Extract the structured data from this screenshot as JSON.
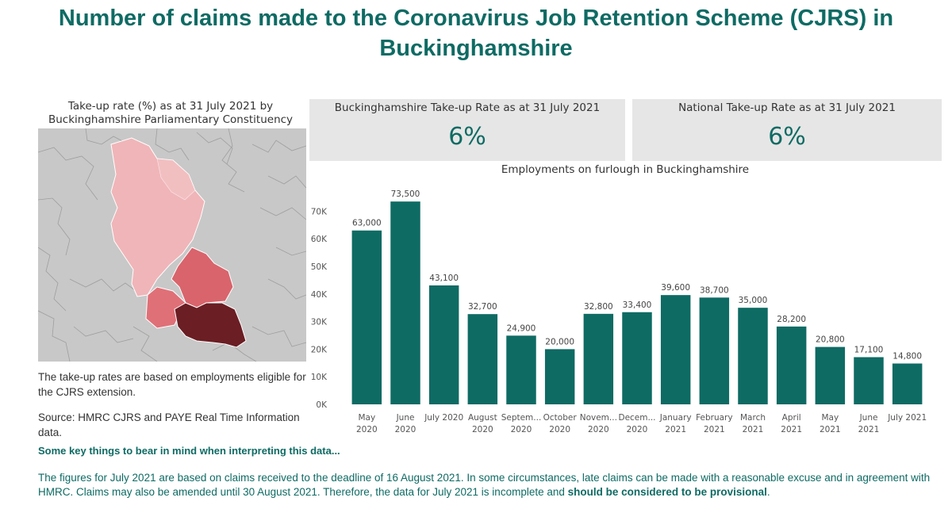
{
  "page": {
    "title": "Number of claims made to the Coronavirus Job Retention Scheme (CJRS) in Buckinghamshire"
  },
  "map": {
    "title": "Take-up rate (%) as at 31 July 2021 by Buckinghamshire Parliamentary Constituency",
    "colors": {
      "background": "#c8c8c8",
      "low": "#f0b5b8",
      "mid_low": "#e8a0a4",
      "mid": "#e07078",
      "mid_high": "#d9646c",
      "high": "#6b1e24"
    }
  },
  "notes": {
    "eligibility": "The take-up rates are based on employments eligible for the CJRS extension.",
    "source": "Source: HMRC CJRS and PAYE Real Time Information data."
  },
  "kpis": [
    {
      "label": "Buckinghamshire Take-up Rate as at 31 July 2021",
      "value": "6%"
    },
    {
      "label": "National Take-up Rate as at 31 July 2021",
      "value": "6%"
    }
  ],
  "bottom": {
    "heading": "Some key things to bear in mind when interpreting this data...",
    "text_part1": "The figures for July 2021 are based on claims received to the deadline of 16 August 2021. In some circumstances, late claims can be made with a reasonable excuse and in agreement with HMRC. Claims may also be amended until 30 August 2021. Therefore, the data for July 2021 is incomplete and ",
    "text_bold": "should be considered to be provisional",
    "text_part2": "."
  },
  "chart_data": {
    "type": "bar",
    "title": "Employments on furlough in Buckinghamshire",
    "categories": [
      [
        "May",
        "2020"
      ],
      [
        "June",
        "2020"
      ],
      [
        "July 2020"
      ],
      [
        "August",
        "2020"
      ],
      [
        "Septem...",
        "2020"
      ],
      [
        "October",
        "2020"
      ],
      [
        "Novem...",
        "2020"
      ],
      [
        "Decem...",
        "2020"
      ],
      [
        "January",
        "2021"
      ],
      [
        "February",
        "2021"
      ],
      [
        "March",
        "2021"
      ],
      [
        "April",
        "2021"
      ],
      [
        "May",
        "2021"
      ],
      [
        "June",
        "2021"
      ],
      [
        "July 2021"
      ]
    ],
    "values": [
      63000,
      73500,
      43100,
      32700,
      24900,
      20000,
      32800,
      33400,
      39600,
      38700,
      35000,
      28200,
      20800,
      17100,
      14800
    ],
    "data_labels": [
      "63,000",
      "73,500",
      "43,100",
      "32,700",
      "24,900",
      "20,000",
      "32,800",
      "33,400",
      "39,600",
      "38,700",
      "35,000",
      "28,200",
      "20,800",
      "17,100",
      "14,800"
    ],
    "y_ticks": [
      0,
      10000,
      20000,
      30000,
      40000,
      50000,
      60000,
      70000
    ],
    "y_tick_labels": [
      "0K",
      "10K",
      "20K",
      "30K",
      "40K",
      "50K",
      "60K",
      "70K"
    ],
    "ylim": [
      0,
      77000
    ],
    "bar_color": "#0e6b64",
    "grid": false,
    "legend": "none"
  }
}
